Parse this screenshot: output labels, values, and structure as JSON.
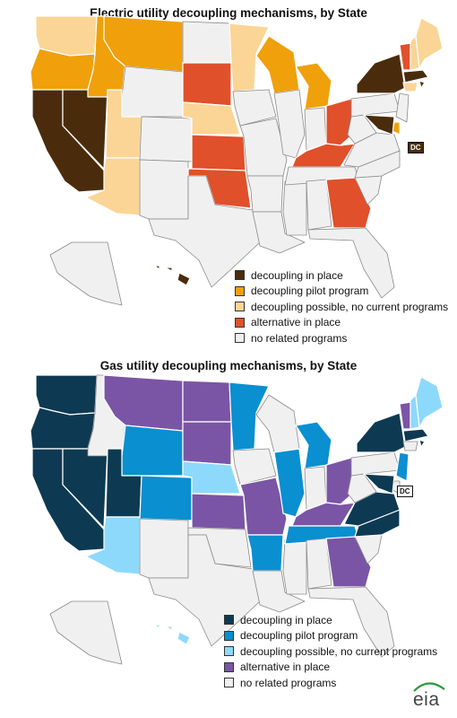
{
  "colors": {
    "stroke": "#ffffff",
    "none": "#f0f0f0"
  },
  "electric": {
    "title": "Electric utility decoupling mechanisms, by State",
    "dc_label": "DC",
    "legend": [
      {
        "label": "decoupling in place",
        "color": "#4a2c0d"
      },
      {
        "label": "decoupling pilot program",
        "color": "#f0a00a"
      },
      {
        "label": "decoupling  possible, no current programs",
        "color": "#fad596"
      },
      {
        "label": "alternative in place",
        "color": "#e0502a"
      },
      {
        "label": "no related programs",
        "color": "#f0f0f0"
      }
    ],
    "states": {
      "WA": "possible",
      "OR": "pilot",
      "CA": "in_place",
      "NV": "in_place",
      "ID": "pilot",
      "MT": "pilot",
      "WY": "none",
      "UT": "possible",
      "AZ": "possible",
      "CO": "none",
      "NM": "none",
      "ND": "none",
      "SD": "alternative",
      "NE": "possible",
      "KS": "alternative",
      "OK": "alternative",
      "TX": "none",
      "MN": "possible",
      "IA": "none",
      "MO": "none",
      "AR": "none",
      "LA": "none",
      "WI": "pilot",
      "IL": "none",
      "MS": "none",
      "MI": "pilot",
      "IN": "none",
      "OH": "alternative",
      "KY": "alternative",
      "TN": "none",
      "AL": "none",
      "GA": "alternative",
      "FL": "none",
      "SC": "none",
      "NC": "none",
      "VA": "none",
      "WV": "none",
      "PA": "none",
      "NY": "in_place",
      "VT": "alternative",
      "NH": "possible",
      "ME": "possible",
      "MA": "in_place",
      "RI": "in_place",
      "CT": "possible",
      "NJ": "none",
      "DE": "pilot",
      "MD": "in_place",
      "AK": "none",
      "HI": "in_place"
    }
  },
  "gas": {
    "title": "Gas utility decoupling mechanisms, by State",
    "dc_label": "DC",
    "legend": [
      {
        "label": "decoupling in place",
        "color": "#0d3a52"
      },
      {
        "label": "decoupling pilot program",
        "color": "#0a8fd0"
      },
      {
        "label": "decoupling possible, no current programs",
        "color": "#8dd9fc"
      },
      {
        "label": "alternative in place",
        "color": "#7a55a5"
      },
      {
        "label": "no related programs",
        "color": "#f0f0f0"
      }
    ],
    "states": {
      "WA": "in_place",
      "OR": "in_place",
      "CA": "in_place",
      "NV": "in_place",
      "ID": "none",
      "MT": "alternative",
      "WY": "pilot",
      "UT": "in_place",
      "AZ": "possible",
      "CO": "pilot",
      "NM": "none",
      "ND": "alternative",
      "SD": "alternative",
      "NE": "possible",
      "KS": "alternative",
      "OK": "none",
      "TX": "none",
      "MN": "pilot",
      "IA": "none",
      "MO": "alternative",
      "AR": "pilot",
      "LA": "none",
      "WI": "none",
      "IL": "pilot",
      "MS": "none",
      "MI": "pilot",
      "IN": "none",
      "OH": "alternative",
      "KY": "alternative",
      "TN": "pilot",
      "AL": "none",
      "GA": "alternative",
      "FL": "none",
      "SC": "none",
      "NC": "in_place",
      "VA": "in_place",
      "WV": "none",
      "PA": "none",
      "NY": "in_place",
      "VT": "alternative",
      "NH": "possible",
      "ME": "possible",
      "MA": "in_place",
      "RI": "in_place",
      "CT": "none",
      "NJ": "pilot",
      "DE": "none",
      "MD": "in_place",
      "AK": "none",
      "HI": "possible"
    }
  },
  "logo": {
    "text": "eia",
    "color": "#2a9a3a"
  }
}
